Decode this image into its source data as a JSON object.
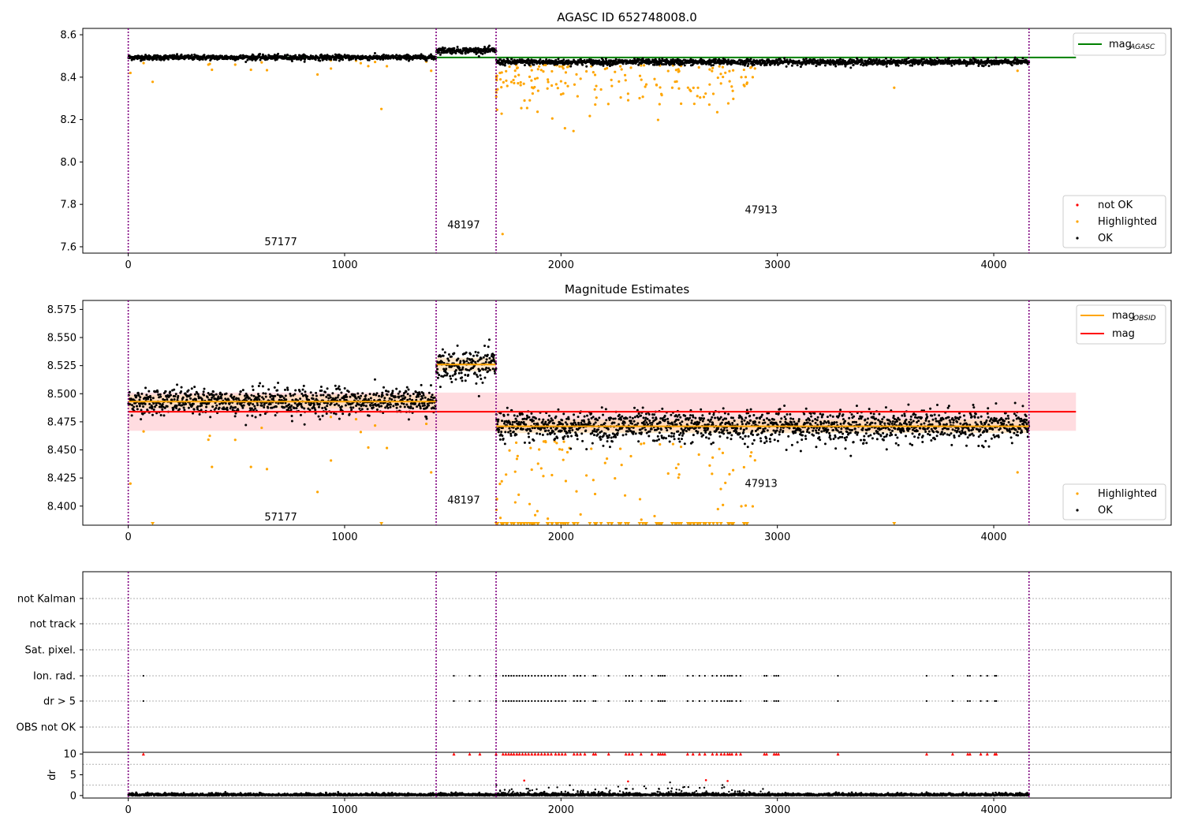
{
  "colors": {
    "ok": "#000000",
    "highlighted": "#ffa500",
    "not_ok": "#ff0000",
    "mag_agasc": "#008000",
    "mag_obsid": "#ffa500",
    "mag": "#ff0000",
    "mag_band": "#ffc0c6",
    "obsid_band": "#ffd9a8",
    "obsid_line": "#800080",
    "grid": "#b0b0b0"
  },
  "chart_data": [
    {
      "type": "scatter",
      "title": "AGASC ID 652748008.0",
      "xlim": [
        -210,
        4820
      ],
      "ylim": [
        7.57,
        8.63
      ],
      "xticks": [
        "0",
        "1000",
        "2000",
        "3000",
        "4000"
      ],
      "yticks": [
        "7.6",
        "7.8",
        "8.0",
        "8.2",
        "8.4",
        "8.6"
      ],
      "obsid_boundaries": [
        0,
        1423,
        1700,
        4163
      ],
      "obsid_labels": [
        {
          "text": "57177",
          "x": 710,
          "y": 7.6
        },
        {
          "text": "48197",
          "x": 1555,
          "y": 7.68
        },
        {
          "text": "47913",
          "x": 2930,
          "y": 7.75
        }
      ],
      "segments": [
        {
          "x0": 0,
          "x1": 1423,
          "mean": 8.493,
          "sd": 0.006
        },
        {
          "x0": 1423,
          "x1": 1700,
          "mean": 8.526,
          "sd": 0.007
        },
        {
          "x0": 1700,
          "x1": 4163,
          "mean": 8.471,
          "sd": 0.007
        }
      ],
      "mag_agasc": {
        "value": 8.493,
        "x0": 0,
        "x1": 4380
      },
      "legend_upper": {
        "label": "mag",
        "sub": "AGASC",
        "position": "upper right"
      },
      "legend_lower": {
        "position": "lower right",
        "entries": [
          "not OK",
          "Highlighted",
          "OK"
        ]
      }
    },
    {
      "type": "scatter",
      "title": "Magnitude Estimates",
      "xlim": [
        -210,
        4820
      ],
      "ylim": [
        8.383,
        8.583
      ],
      "xticks": [
        "0",
        "1000",
        "2000",
        "3000",
        "4000"
      ],
      "yticks": [
        "8.400",
        "8.425",
        "8.450",
        "8.475",
        "8.500",
        "8.525",
        "8.550",
        "8.575"
      ],
      "mag": {
        "value": 8.484,
        "band": [
          8.467,
          8.501
        ],
        "x0": 0,
        "x1": 4380
      },
      "mag_obsid": [
        {
          "x0": 0,
          "x1": 1423,
          "value": 8.493
        },
        {
          "x0": 1423,
          "x1": 1700,
          "value": 8.526
        },
        {
          "x0": 1700,
          "x1": 4163,
          "value": 8.471
        }
      ],
      "obsid_labels": [
        {
          "text": "57177",
          "x": 710,
          "y": 8.39
        },
        {
          "text": "48197",
          "x": 1555,
          "y": 8.405
        },
        {
          "text": "47913",
          "x": 2930,
          "y": 8.42
        }
      ],
      "legend_upper": {
        "position": "upper right",
        "entries": [
          {
            "label": "mag",
            "sub": "OBSID"
          },
          {
            "label": "mag",
            "sub": ""
          }
        ]
      },
      "legend_lower": {
        "position": "lower right",
        "entries": [
          "Highlighted",
          "OK"
        ]
      }
    },
    {
      "type": "scatter",
      "title": "",
      "xlim": [
        -210,
        4820
      ],
      "flag_rows": [
        "not Kalman",
        "not track",
        "Sat. pixel.",
        "Ion. rad.",
        "dr > 5",
        "OBS not OK"
      ],
      "flag_x": [
        70,
        1505,
        1578,
        1625,
        1700,
        1732,
        1745,
        1758,
        1770,
        1782,
        1796,
        1808,
        1822,
        1836,
        1850,
        1865,
        1880,
        1895,
        1910,
        1925,
        1940,
        1955,
        1975,
        1990,
        2005,
        2020,
        2060,
        2075,
        2090,
        2110,
        2150,
        2160,
        2220,
        2300,
        2315,
        2330,
        2370,
        2420,
        2450,
        2460,
        2470,
        2480,
        2585,
        2610,
        2640,
        2665,
        2700,
        2720,
        2740,
        2755,
        2770,
        2780,
        2790,
        2810,
        2830,
        2940,
        2950,
        2985,
        2995,
        3005,
        3280,
        3690,
        3810,
        3880,
        3890,
        3940,
        3970,
        4005,
        4012
      ]
    },
    {
      "type": "scatter",
      "ylabel": "dr",
      "xlim": [
        -210,
        4820
      ],
      "ylim": [
        -0.6,
        10.4
      ],
      "xticks": [
        "0",
        "1000",
        "2000",
        "3000",
        "4000"
      ],
      "yticks": [
        "0",
        "5",
        "10"
      ],
      "clipped_value": 10,
      "red_points": [
        {
          "x": 1830,
          "y": 3.6
        },
        {
          "x": 2310,
          "y": 3.4
        },
        {
          "x": 2670,
          "y": 3.7
        },
        {
          "x": 2770,
          "y": 3.5
        }
      ]
    }
  ]
}
